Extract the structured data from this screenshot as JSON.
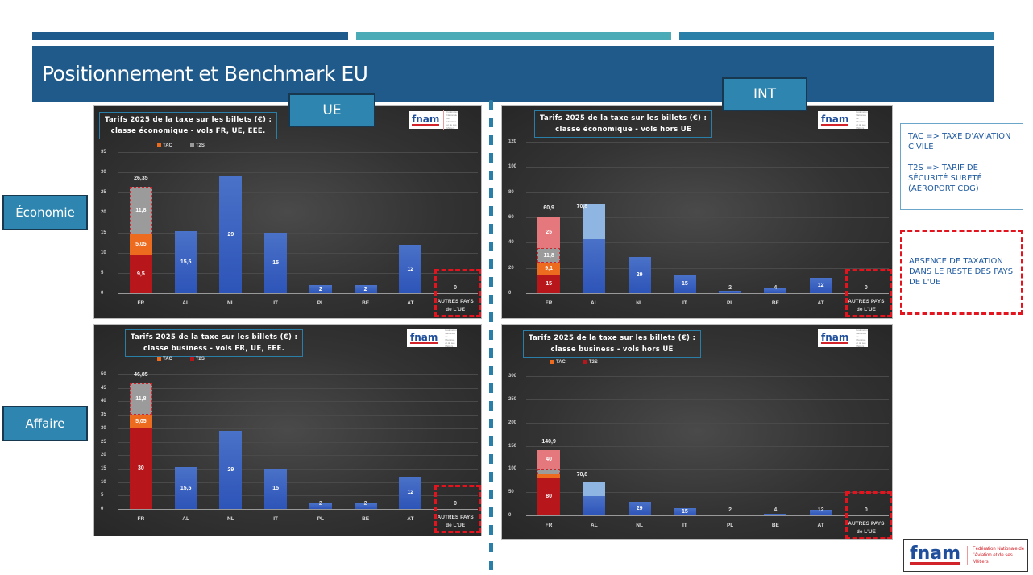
{
  "header": {
    "title": "Positionnement et Benchmark EU",
    "stripe_colors": [
      "#1e5a8c",
      "#4bacb8",
      "#2a7fa8"
    ]
  },
  "tags": {
    "ue": "UE",
    "int": "INT",
    "economie": "Économie",
    "affaire": "Affaire"
  },
  "legend_box": {
    "line1": "TAC => TAXE D'AVIATION CIVILE",
    "line2": "T2S => TARIF DE SÉCURITÉ SURETÉ (AÉROPORT CDG)"
  },
  "note_box": {
    "text": "ABSENCE DE TAXATION DANS LE RESTE DES PAYS DE L'UE"
  },
  "logo": {
    "name": "fnam",
    "subtitle": "Fédération Nationale de l'Aviation et de ses Métiers"
  },
  "colors": {
    "fr_base": "#b7161a",
    "tac": "#ec6b1e",
    "t2s": "#9b9b9b",
    "extra_pink": "#e5787c",
    "blue": "#3863c2",
    "light_blue": "#8fb6e2",
    "accent_red": "#e3141e"
  },
  "chart_data": [
    {
      "type": "bar",
      "id": "eco_ue",
      "title": "Tarifs 2025 de la taxe sur les billets (€) : classe économique - vols FR, UE, EEE.",
      "title_l1": "Tarifs 2025 de la taxe sur les billets (€) :",
      "title_l2": "classe économique - vols FR, UE, EEE.",
      "legend": [
        "TAC",
        "T2S"
      ],
      "categories": [
        "FR",
        "AL",
        "NL",
        "IT",
        "PL",
        "BE",
        "AT",
        "AUTRES PAYS de L'UE"
      ],
      "values": [
        26.35,
        15.5,
        29,
        15,
        2,
        2,
        12,
        0
      ],
      "labels": [
        "26,35",
        "15,5",
        "29",
        "15",
        "2",
        "2",
        "12",
        "0"
      ],
      "fr_stack": [
        {
          "name": "Base",
          "value": 9.5,
          "label": "9,5"
        },
        {
          "name": "TAC",
          "value": 5.05,
          "label": "5,05"
        },
        {
          "name": "T2S",
          "value": 11.8,
          "label": "11,8"
        }
      ],
      "yticks": [
        0,
        5,
        10,
        15,
        20,
        25,
        30,
        35
      ],
      "ylim": [
        0,
        35
      ]
    },
    {
      "type": "bar",
      "id": "eco_int",
      "title": "Tarifs 2025 de la taxe sur les billets (€) : classe économique - vols hors UE",
      "title_l1": "Tarifs 2025 de la taxe sur les billets (€) :",
      "title_l2": "classe économique - vols hors UE",
      "legend": [],
      "categories": [
        "FR",
        "AL",
        "NL",
        "IT",
        "PL",
        "BE",
        "AT",
        "AUTRES PAYS de L'UE"
      ],
      "values": [
        60.9,
        70.8,
        29,
        15,
        2,
        4,
        12,
        0
      ],
      "labels": [
        "60,9",
        "70,8",
        "29",
        "15",
        "2",
        "4",
        "12",
        "0"
      ],
      "fr_stack": [
        {
          "name": "Base",
          "value": 15,
          "label": "15"
        },
        {
          "name": "TAC",
          "value": 9.1,
          "label": "9,1"
        },
        {
          "name": "T2S",
          "value": 11.8,
          "label": "11,8"
        },
        {
          "name": "Extra",
          "value": 25,
          "label": "25"
        }
      ],
      "al_stack": [
        {
          "value": 42.5
        },
        {
          "value": 28.3
        }
      ],
      "yticks": [
        0,
        20,
        40,
        60,
        80,
        100,
        120
      ],
      "ylim": [
        0,
        120
      ]
    },
    {
      "type": "bar",
      "id": "bus_ue",
      "title": "Tarifs 2025 de la taxe sur les billets (€) : classe business - vols FR, UE, EEE.",
      "title_l1": "Tarifs 2025 de la taxe sur les billets (€) :",
      "title_l2": "classe business - vols FR, UE, EEE.",
      "legend": [
        "TAC",
        "T2S"
      ],
      "categories": [
        "FR",
        "AL",
        "NL",
        "IT",
        "PL",
        "BE",
        "AT",
        "AUTRES PAYS de L'UE"
      ],
      "values": [
        46.85,
        15.5,
        29,
        15,
        2,
        2,
        12,
        0
      ],
      "labels": [
        "46,85",
        "15,5",
        "29",
        "15",
        "2",
        "2",
        "12",
        "0"
      ],
      "fr_stack": [
        {
          "name": "Base",
          "value": 30,
          "label": "30"
        },
        {
          "name": "TAC",
          "value": 5.05,
          "label": "5,05"
        },
        {
          "name": "T2S",
          "value": 11.8,
          "label": "11,8"
        }
      ],
      "yticks": [
        0,
        5,
        10,
        15,
        20,
        25,
        30,
        35,
        40,
        45,
        50
      ],
      "ylim": [
        0,
        50
      ]
    },
    {
      "type": "bar",
      "id": "bus_int",
      "title": "Tarifs 2025 de la taxe sur les billets (€) : classe business - vols hors UE",
      "title_l1": "Tarifs 2025 de la taxe sur les billets (€) :",
      "title_l2": "classe business - vols hors UE",
      "legend": [
        "TAC",
        "T2S"
      ],
      "categories": [
        "FR",
        "AL",
        "NL",
        "IT",
        "PL",
        "BE",
        "AT",
        "AUTRES PAYS de L'UE"
      ],
      "values": [
        140.9,
        70.8,
        29,
        15,
        2,
        4,
        12,
        0
      ],
      "labels": [
        "140,9",
        "70,8",
        "29",
        "15",
        "2",
        "4",
        "12",
        "0"
      ],
      "fr_stack": [
        {
          "name": "Base",
          "value": 80,
          "label": "80"
        },
        {
          "name": "TAC",
          "value": 9.1,
          "label": "9,1"
        },
        {
          "name": "T2S",
          "value": 11.8,
          "label": "11,8"
        },
        {
          "name": "Extra",
          "value": 40,
          "label": "40"
        }
      ],
      "al_stack": [
        {
          "value": 42.5
        },
        {
          "value": 28.3
        }
      ],
      "yticks": [
        0,
        50,
        100,
        150,
        200,
        250,
        300
      ],
      "ylim": [
        0,
        300
      ]
    }
  ]
}
